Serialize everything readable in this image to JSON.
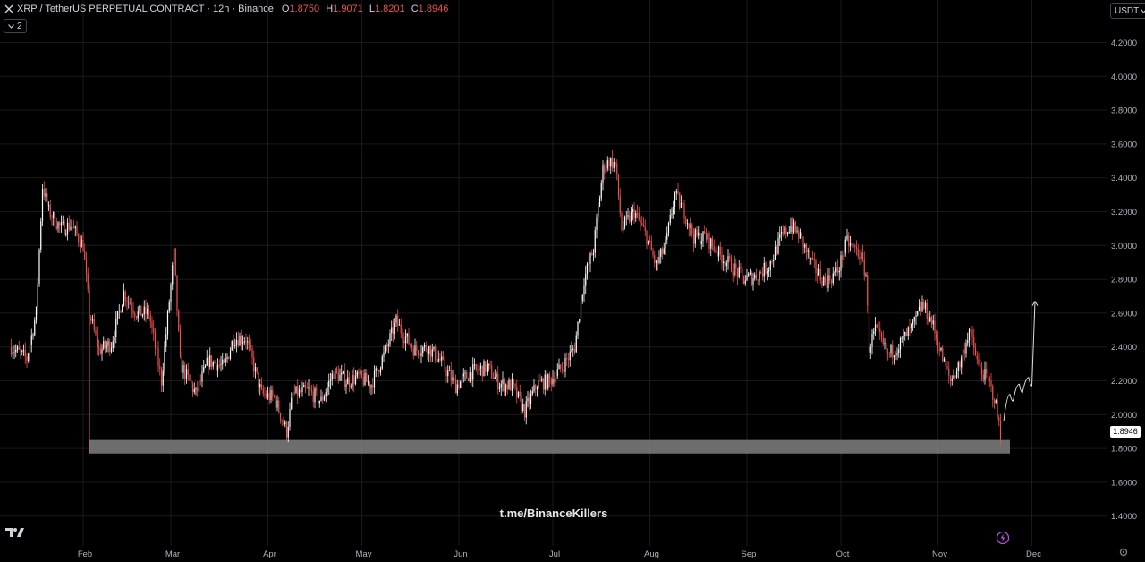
{
  "header": {
    "symbol": "XRP / TetherUS PERPETUAL CONTRACT · 12h · Binance",
    "open_label": "O",
    "open": "1.8750",
    "high_label": "H",
    "high": "1.9071",
    "low_label": "L",
    "low": "1.8201",
    "close_label": "C",
    "close": "1.8946",
    "indicators_count": "2"
  },
  "currency_button": "USDT",
  "last_price_label": "1.8946",
  "watermark": "t.me/BinanceKillers",
  "colors": {
    "up": "#ffffff",
    "down": "#ef5350",
    "zone": "#808080",
    "background": "#000000",
    "grid": "#1a1a1a"
  },
  "icons": [
    "xrp-symbol-icon",
    "chevron-down-icon",
    "tradingview-logo-icon",
    "lightning-icon",
    "gear-icon"
  ],
  "chart_data": {
    "type": "candlestick",
    "ylim": [
      1.2,
      4.3
    ],
    "yticks": [
      "4.2000",
      "4.0000",
      "3.8000",
      "3.6000",
      "3.4000",
      "3.2000",
      "3.0000",
      "2.8000",
      "2.6000",
      "2.4000",
      "2.2000",
      "2.0000",
      "1.8000",
      "1.6000",
      "1.4000"
    ],
    "xticks": [
      "Feb",
      "Mar",
      "Apr",
      "May",
      "Jun",
      "Jul",
      "Aug",
      "Sep",
      "Oct",
      "Nov",
      "Dec"
    ],
    "series": [
      {
        "x": "2025-01-09",
        "y": 2.4
      },
      {
        "x": "2025-01-14",
        "y": 2.33
      },
      {
        "x": "2025-01-17",
        "y": 2.6
      },
      {
        "x": "2025-01-19",
        "y": 3.35
      },
      {
        "x": "2025-01-21",
        "y": 3.2
      },
      {
        "x": "2025-01-25",
        "y": 3.1
      },
      {
        "x": "2025-01-28",
        "y": 3.12
      },
      {
        "x": "2025-02-01",
        "y": 3.0
      },
      {
        "x": "2025-02-03",
        "y": 2.6
      },
      {
        "x": "2025-02-06",
        "y": 2.38
      },
      {
        "x": "2025-02-10",
        "y": 2.42
      },
      {
        "x": "2025-02-14",
        "y": 2.72
      },
      {
        "x": "2025-02-18",
        "y": 2.6
      },
      {
        "x": "2025-02-22",
        "y": 2.6
      },
      {
        "x": "2025-02-26",
        "y": 2.2
      },
      {
        "x": "2025-03-02",
        "y": 2.95
      },
      {
        "x": "2025-03-04",
        "y": 2.3
      },
      {
        "x": "2025-03-09",
        "y": 2.12
      },
      {
        "x": "2025-03-13",
        "y": 2.32
      },
      {
        "x": "2025-03-18",
        "y": 2.28
      },
      {
        "x": "2025-03-21",
        "y": 2.45
      },
      {
        "x": "2025-03-25",
        "y": 2.45
      },
      {
        "x": "2025-03-30",
        "y": 2.12
      },
      {
        "x": "2025-04-03",
        "y": 2.1
      },
      {
        "x": "2025-04-07",
        "y": 1.9
      },
      {
        "x": "2025-04-09",
        "y": 2.12
      },
      {
        "x": "2025-04-14",
        "y": 2.14
      },
      {
        "x": "2025-04-18",
        "y": 2.08
      },
      {
        "x": "2025-04-22",
        "y": 2.25
      },
      {
        "x": "2025-04-26",
        "y": 2.2
      },
      {
        "x": "2025-04-30",
        "y": 2.22
      },
      {
        "x": "2025-05-04",
        "y": 2.18
      },
      {
        "x": "2025-05-08",
        "y": 2.35
      },
      {
        "x": "2025-05-12",
        "y": 2.55
      },
      {
        "x": "2025-05-14",
        "y": 2.48
      },
      {
        "x": "2025-05-18",
        "y": 2.38
      },
      {
        "x": "2025-05-22",
        "y": 2.4
      },
      {
        "x": "2025-05-26",
        "y": 2.32
      },
      {
        "x": "2025-05-31",
        "y": 2.17
      },
      {
        "x": "2025-06-05",
        "y": 2.25
      },
      {
        "x": "2025-06-10",
        "y": 2.28
      },
      {
        "x": "2025-06-14",
        "y": 2.18
      },
      {
        "x": "2025-06-18",
        "y": 2.17
      },
      {
        "x": "2025-06-22",
        "y": 2.02
      },
      {
        "x": "2025-06-26",
        "y": 2.18
      },
      {
        "x": "2025-06-30",
        "y": 2.2
      },
      {
        "x": "2025-07-04",
        "y": 2.28
      },
      {
        "x": "2025-07-08",
        "y": 2.4
      },
      {
        "x": "2025-07-11",
        "y": 2.8
      },
      {
        "x": "2025-07-14",
        "y": 2.98
      },
      {
        "x": "2025-07-17",
        "y": 3.45
      },
      {
        "x": "2025-07-19",
        "y": 3.5
      },
      {
        "x": "2025-07-21",
        "y": 3.48
      },
      {
        "x": "2025-07-23",
        "y": 3.1
      },
      {
        "x": "2025-07-27",
        "y": 3.2
      },
      {
        "x": "2025-07-31",
        "y": 3.05
      },
      {
        "x": "2025-08-03",
        "y": 2.88
      },
      {
        "x": "2025-08-06",
        "y": 3.0
      },
      {
        "x": "2025-08-09",
        "y": 3.3
      },
      {
        "x": "2025-08-12",
        "y": 3.2
      },
      {
        "x": "2025-08-15",
        "y": 3.05
      },
      {
        "x": "2025-08-19",
        "y": 3.05
      },
      {
        "x": "2025-08-23",
        "y": 2.95
      },
      {
        "x": "2025-08-27",
        "y": 2.88
      },
      {
        "x": "2025-08-31",
        "y": 2.8
      },
      {
        "x": "2025-09-04",
        "y": 2.82
      },
      {
        "x": "2025-09-08",
        "y": 2.88
      },
      {
        "x": "2025-09-12",
        "y": 3.05
      },
      {
        "x": "2025-09-15",
        "y": 3.12
      },
      {
        "x": "2025-09-18",
        "y": 3.05
      },
      {
        "x": "2025-09-22",
        "y": 2.88
      },
      {
        "x": "2025-09-26",
        "y": 2.78
      },
      {
        "x": "2025-09-30",
        "y": 2.85
      },
      {
        "x": "2025-10-03",
        "y": 3.02
      },
      {
        "x": "2025-10-07",
        "y": 2.95
      },
      {
        "x": "2025-10-09",
        "y": 2.83
      },
      {
        "x": "2025-10-10",
        "y": 2.4
      },
      {
        "x": "2025-10-12",
        "y": 2.5
      },
      {
        "x": "2025-10-16",
        "y": 2.35
      },
      {
        "x": "2025-10-20",
        "y": 2.42
      },
      {
        "x": "2025-10-24",
        "y": 2.52
      },
      {
        "x": "2025-10-27",
        "y": 2.65
      },
      {
        "x": "2025-10-30",
        "y": 2.55
      },
      {
        "x": "2025-11-03",
        "y": 2.3
      },
      {
        "x": "2025-11-05",
        "y": 2.2
      },
      {
        "x": "2025-11-08",
        "y": 2.3
      },
      {
        "x": "2025-11-11",
        "y": 2.5
      },
      {
        "x": "2025-11-14",
        "y": 2.28
      },
      {
        "x": "2025-11-17",
        "y": 2.2
      },
      {
        "x": "2025-11-19",
        "y": 2.1
      },
      {
        "x": "2025-11-21",
        "y": 1.89
      }
    ],
    "candles": "decorative 12h candles following the series path; colors up=white, down=red",
    "annotations": {
      "support_zone": {
        "y_low": 1.77,
        "y_high": 1.85,
        "x_start": "2025-02-03",
        "x_end": "2025-11-24"
      },
      "projection_path": [
        {
          "x": "2025-11-22",
          "y": 1.96
        },
        {
          "x": "2025-11-24",
          "y": 2.12
        },
        {
          "x": "2025-11-25",
          "y": 2.08
        },
        {
          "x": "2025-11-27",
          "y": 2.18
        },
        {
          "x": "2025-11-28",
          "y": 2.13
        },
        {
          "x": "2025-11-30",
          "y": 2.22
        },
        {
          "x": "2025-12-01",
          "y": 2.17
        },
        {
          "x": "2025-12-02",
          "y": 2.67
        }
      ],
      "wick_lines": [
        {
          "x": "2025-02-03",
          "y_top": 2.6,
          "y_bottom": 1.77
        },
        {
          "x": "2025-10-10",
          "y_top": 2.8,
          "y_bottom": 1.2
        }
      ]
    }
  }
}
